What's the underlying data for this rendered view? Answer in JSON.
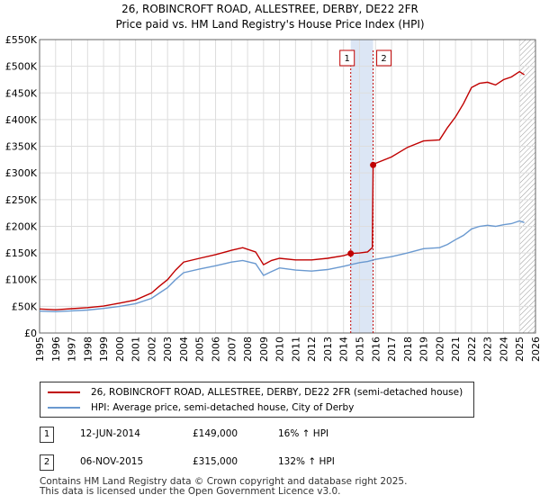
{
  "title_line1": "26, ROBINCROFT ROAD, ALLESTREE, DERBY, DE22 2FR",
  "title_line2": "Price paid vs. HM Land Registry's House Price Index (HPI)",
  "colors": {
    "red": "#c00000",
    "blue": "#6a99d0",
    "grid": "#dddddd",
    "shade": "#dce6f5"
  },
  "chart_data": {
    "type": "line",
    "title": "Price paid vs. HM Land Registry's House Price Index (HPI)",
    "xlabel": "",
    "ylabel": "",
    "xlim": [
      1995,
      2026
    ],
    "ylim": [
      0,
      550000
    ],
    "yticks": [
      {
        "value": 0,
        "label": "£0"
      },
      {
        "value": 50000,
        "label": "£50K"
      },
      {
        "value": 100000,
        "label": "£100K"
      },
      {
        "value": 150000,
        "label": "£150K"
      },
      {
        "value": 200000,
        "label": "£200K"
      },
      {
        "value": 250000,
        "label": "£250K"
      },
      {
        "value": 300000,
        "label": "£300K"
      },
      {
        "value": 350000,
        "label": "£350K"
      },
      {
        "value": 400000,
        "label": "£400K"
      },
      {
        "value": 450000,
        "label": "£450K"
      },
      {
        "value": 500000,
        "label": "£500K"
      },
      {
        "value": 550000,
        "label": "£550K"
      }
    ],
    "xticks": [
      "1995",
      "1996",
      "1997",
      "1998",
      "1999",
      "2000",
      "2001",
      "2002",
      "2003",
      "2004",
      "2005",
      "2006",
      "2007",
      "2008",
      "2009",
      "2010",
      "2011",
      "2012",
      "2013",
      "2014",
      "2015",
      "2016",
      "2017",
      "2018",
      "2019",
      "2020",
      "2021",
      "2022",
      "2023",
      "2024",
      "2025",
      "2026"
    ],
    "series": [
      {
        "name": "26, ROBINCROFT ROAD, ALLESTREE, DERBY, DE22 2FR (semi-detached house)",
        "color": "#c00000",
        "points": [
          [
            1995.0,
            45000
          ],
          [
            1996.0,
            43500
          ],
          [
            1997.0,
            45500
          ],
          [
            1998.0,
            47500
          ],
          [
            1999.0,
            50500
          ],
          [
            2000.0,
            56000
          ],
          [
            2001.0,
            62000
          ],
          [
            2002.0,
            75000
          ],
          [
            2002.5,
            88000
          ],
          [
            2003.0,
            100000
          ],
          [
            2003.5,
            118000
          ],
          [
            2004.0,
            133000
          ],
          [
            2005.0,
            140000
          ],
          [
            2006.0,
            147000
          ],
          [
            2007.0,
            155000
          ],
          [
            2007.7,
            160000
          ],
          [
            2008.5,
            152000
          ],
          [
            2009.0,
            128000
          ],
          [
            2009.5,
            136000
          ],
          [
            2010.0,
            140000
          ],
          [
            2011.0,
            137000
          ],
          [
            2012.0,
            137000
          ],
          [
            2013.0,
            140000
          ],
          [
            2014.0,
            145000
          ],
          [
            2014.45,
            149000
          ],
          [
            2015.0,
            150000
          ],
          [
            2015.5,
            152000
          ],
          [
            2015.8,
            160000
          ],
          [
            2015.85,
            315000
          ],
          [
            2016.0,
            318000
          ],
          [
            2017.0,
            330000
          ],
          [
            2018.0,
            348000
          ],
          [
            2019.0,
            360000
          ],
          [
            2020.0,
            362000
          ],
          [
            2020.5,
            385000
          ],
          [
            2021.0,
            405000
          ],
          [
            2021.5,
            430000
          ],
          [
            2022.0,
            460000
          ],
          [
            2022.5,
            468000
          ],
          [
            2023.0,
            470000
          ],
          [
            2023.5,
            465000
          ],
          [
            2024.0,
            475000
          ],
          [
            2024.5,
            480000
          ],
          [
            2025.0,
            490000
          ],
          [
            2025.3,
            484000
          ]
        ]
      },
      {
        "name": "HPI: Average price, semi-detached house, City of Derby",
        "color": "#6a99d0",
        "points": [
          [
            1995.0,
            41000
          ],
          [
            1996.0,
            40000
          ],
          [
            1997.0,
            41500
          ],
          [
            1998.0,
            43000
          ],
          [
            1999.0,
            46000
          ],
          [
            2000.0,
            50000
          ],
          [
            2001.0,
            55000
          ],
          [
            2002.0,
            65000
          ],
          [
            2002.5,
            75000
          ],
          [
            2003.0,
            85000
          ],
          [
            2003.5,
            100000
          ],
          [
            2004.0,
            113000
          ],
          [
            2005.0,
            120000
          ],
          [
            2006.0,
            126000
          ],
          [
            2007.0,
            133000
          ],
          [
            2007.7,
            136000
          ],
          [
            2008.5,
            130000
          ],
          [
            2009.0,
            108000
          ],
          [
            2009.5,
            115000
          ],
          [
            2010.0,
            122000
          ],
          [
            2011.0,
            118000
          ],
          [
            2012.0,
            116000
          ],
          [
            2013.0,
            119000
          ],
          [
            2014.0,
            125000
          ],
          [
            2014.45,
            128000
          ],
          [
            2015.0,
            132000
          ],
          [
            2015.5,
            134000
          ],
          [
            2016.0,
            138000
          ],
          [
            2017.0,
            143000
          ],
          [
            2018.0,
            150000
          ],
          [
            2019.0,
            158000
          ],
          [
            2020.0,
            160000
          ],
          [
            2020.5,
            166000
          ],
          [
            2021.0,
            175000
          ],
          [
            2021.5,
            183000
          ],
          [
            2022.0,
            195000
          ],
          [
            2022.5,
            200000
          ],
          [
            2023.0,
            202000
          ],
          [
            2023.5,
            200000
          ],
          [
            2024.0,
            203000
          ],
          [
            2024.5,
            205000
          ],
          [
            2025.0,
            210000
          ],
          [
            2025.3,
            207000
          ]
        ]
      }
    ],
    "annotations": [
      {
        "label": "1",
        "x": 2014.45,
        "y": 149000
      },
      {
        "label": "2",
        "x": 2015.85,
        "y": 315000
      }
    ],
    "shaded_range": [
      2014.45,
      2015.85
    ],
    "future_hatch_from": 2025.0,
    "legend_position": "below"
  },
  "legend": [
    {
      "label": "26, ROBINCROFT ROAD, ALLESTREE, DERBY, DE22 2FR (semi-detached house)",
      "color": "#c00000"
    },
    {
      "label": "HPI: Average price, semi-detached house, City of Derby",
      "color": "#6a99d0"
    }
  ],
  "transactions": [
    {
      "num": "1",
      "date": "12-JUN-2014",
      "price": "£149,000",
      "hpi": "16% ↑ HPI"
    },
    {
      "num": "2",
      "date": "06-NOV-2015",
      "price": "£315,000",
      "hpi": "132% ↑ HPI"
    }
  ],
  "footer_line1": "Contains HM Land Registry data © Crown copyright and database right 2025.",
  "footer_line2": "This data is licensed under the Open Government Licence v3.0."
}
